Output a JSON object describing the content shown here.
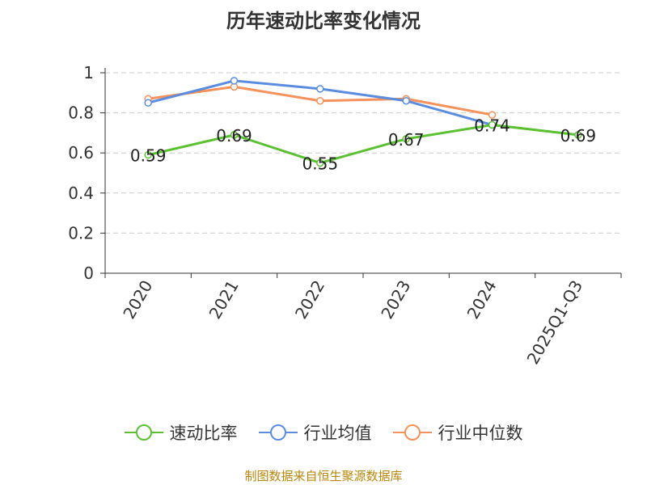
{
  "chart_data": {
    "type": "line",
    "title": "历年速动比率变化情况",
    "categories": [
      "2020",
      "2021",
      "2022",
      "2023",
      "2024",
      "2025Q1-Q3"
    ],
    "ylim": [
      0,
      1
    ],
    "yticks": [
      "0",
      "0.2",
      "0.4",
      "0.6",
      "0.8",
      "1"
    ],
    "grid": true,
    "legend_position": "bottom",
    "series": [
      {
        "name": "速动比率",
        "color": "#5cc033",
        "values": [
          0.59,
          0.69,
          0.55,
          0.67,
          0.74,
          0.69
        ],
        "labels": [
          "0.59",
          "0.69",
          "0.55",
          "0.67",
          "0.74",
          "0.69"
        ]
      },
      {
        "name": "行业均值",
        "color": "#5b8ce0",
        "values": [
          0.85,
          0.96,
          0.92,
          0.86,
          0.74,
          null
        ]
      },
      {
        "name": "行业中位数",
        "color": "#f5915a",
        "values": [
          0.87,
          0.93,
          0.86,
          0.87,
          0.79,
          null
        ]
      }
    ]
  },
  "source": "制图数据来自恒生聚源数据库"
}
